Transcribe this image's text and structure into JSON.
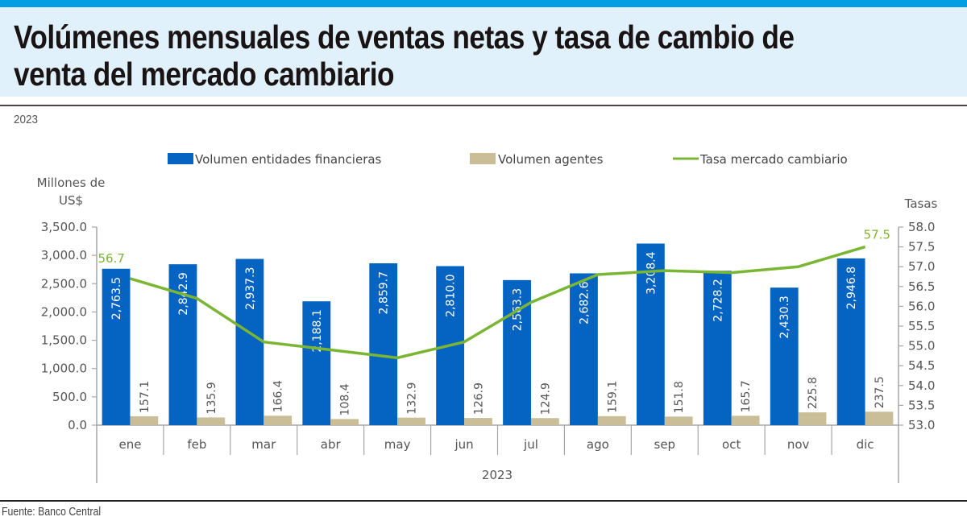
{
  "header": {
    "title": "Volúmenes mensuales de ventas netas y tasa de cambio de venta del mercado cambiario",
    "subtitle": "2023"
  },
  "footer": {
    "source": "Fuente: Banco Central"
  },
  "colors": {
    "accent_bar": "#009fe3",
    "title_bg": "#e1f1fb",
    "series_entidades": "#0563c1",
    "series_agentes": "#c9be98",
    "series_tasa": "#7ab534"
  },
  "chart_data": {
    "type": "bar",
    "title": "Volúmenes mensuales de ventas netas y tasa de cambio de venta del mercado cambiario",
    "subtitle": "2023",
    "categories": [
      "ene",
      "feb",
      "mar",
      "abr",
      "may",
      "jun",
      "jul",
      "ago",
      "sep",
      "oct",
      "nov",
      "dic"
    ],
    "xlabel": "2023",
    "ylabel": "Millones de US$",
    "ylabel_lines": [
      "Millones de",
      "US$"
    ],
    "y2label": "Tasas",
    "ylim": [
      0,
      3500
    ],
    "y2lim": [
      53.0,
      58.0
    ],
    "yticks": [
      "0.0",
      "500.0",
      "1,000.0",
      "1,500.0",
      "2,000.0",
      "2,500.0",
      "3,000.0",
      "3,500.0"
    ],
    "y2ticks": [
      "53.0",
      "53.5",
      "54.0",
      "54.5",
      "55.0",
      "55.5",
      "56.0",
      "56.5",
      "57.0",
      "57.5",
      "58.0"
    ],
    "grid": false,
    "legend_position": "top",
    "series": [
      {
        "name": "Volumen entidades financieras",
        "type": "bar",
        "axis": "left",
        "values": [
          2763.5,
          2842.9,
          2937.3,
          2188.1,
          2859.7,
          2810.0,
          2563.3,
          2682.6,
          3208.4,
          2728.2,
          2430.3,
          2946.8
        ],
        "labels": [
          "2,763.5",
          "2,842.9",
          "2,937.3",
          "2,188.1",
          "2,859.7",
          "2,810.0",
          "2,563.3",
          "2,682.6",
          "3,208.4",
          "2,728.2",
          "2,430.3",
          "2,946.8"
        ]
      },
      {
        "name": "Volumen agentes",
        "type": "bar",
        "axis": "left",
        "values": [
          157.1,
          135.9,
          166.4,
          108.4,
          132.9,
          126.9,
          124.9,
          159.1,
          151.8,
          165.7,
          225.8,
          237.5
        ],
        "labels": [
          "157.1",
          "135.9",
          "166.4",
          "108.4",
          "132.9",
          "126.9",
          "124.9",
          "159.1",
          "151.8",
          "165.7",
          "225.8",
          "237.5"
        ]
      },
      {
        "name": "Tasa mercado cambiario",
        "type": "line",
        "axis": "right",
        "values": [
          56.7,
          56.2,
          55.1,
          54.9,
          54.7,
          55.1,
          56.1,
          56.8,
          56.9,
          56.85,
          57.0,
          57.5
        ],
        "point_labels": [
          {
            "index": 0,
            "text": "56.7"
          },
          {
            "index": 11,
            "text": "57.5"
          }
        ]
      }
    ]
  }
}
